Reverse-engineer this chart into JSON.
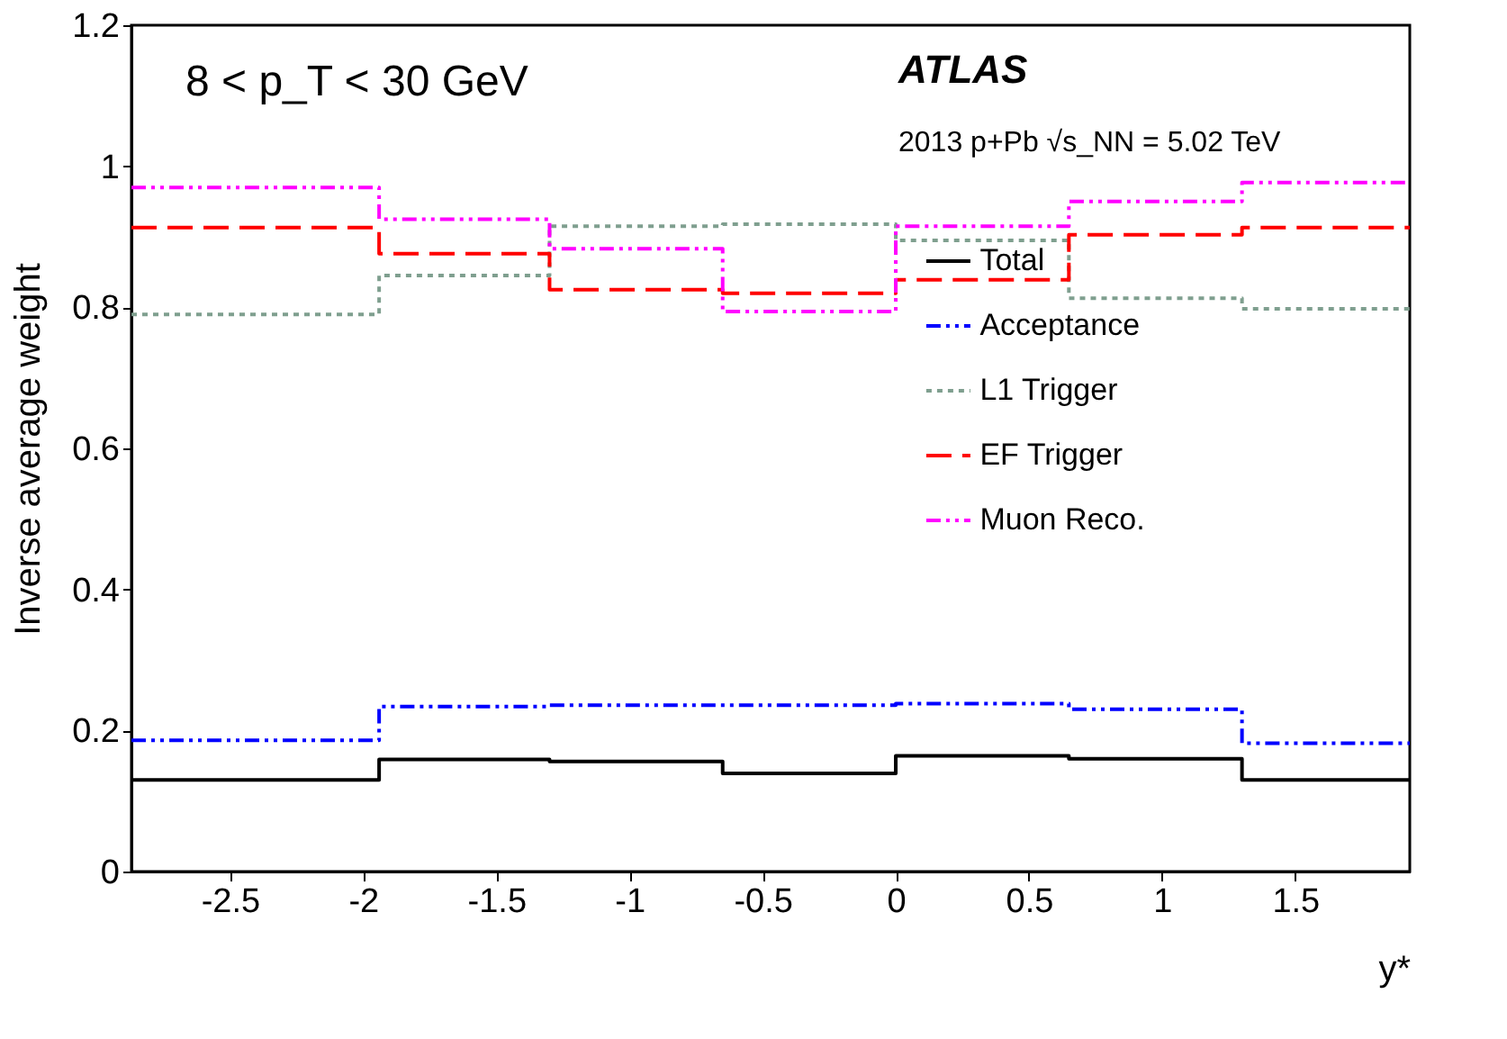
{
  "chart_data": {
    "type": "step",
    "xlabel": "y*",
    "ylabel": "Inverse average weight",
    "x": [
      -2.87,
      -1.94,
      -1.3,
      -0.65,
      0,
      0.65,
      1.3,
      1.93
    ],
    "xlim": [
      -2.87,
      1.93
    ],
    "xticks": [
      -2.5,
      -2,
      -1.5,
      -1,
      -0.5,
      0,
      0.5,
      1,
      1.5
    ],
    "ylim": [
      0,
      1.2
    ],
    "yticks": [
      0,
      0.2,
      0.4,
      0.6,
      0.8,
      1,
      1.2
    ],
    "series": [
      {
        "name": "Total",
        "color": "#000000",
        "line_style": "solid",
        "values": [
          0.13,
          0.159,
          0.156,
          0.139,
          0.164,
          0.16,
          0.13,
          0.13
        ]
      },
      {
        "name": "Acceptance",
        "color": "#0000ff",
        "line_style": "dashdot",
        "values": [
          0.186,
          0.234,
          0.236,
          0.236,
          0.238,
          0.23,
          0.182,
          0.182
        ]
      },
      {
        "name": "L1 Trigger",
        "color": "#7f9f8f",
        "line_style": "dotted",
        "values": [
          0.79,
          0.845,
          0.915,
          0.918,
          0.895,
          0.813,
          0.798,
          0.798
        ]
      },
      {
        "name": "EF Trigger",
        "color": "#ff0000",
        "line_style": "dashed",
        "values": [
          0.913,
          0.876,
          0.825,
          0.82,
          0.839,
          0.903,
          0.913,
          0.913
        ]
      },
      {
        "name": "Muon Reco.",
        "color": "#ff00ff",
        "line_style": "dashdot",
        "values": [
          0.97,
          0.925,
          0.883,
          0.794,
          0.915,
          0.95,
          0.977,
          0.977
        ]
      }
    ],
    "legend": "right",
    "grid": false,
    "marker": "none",
    "annotations": [
      "8 < p_T < 30 GeV",
      "ATLAS",
      "2013 p+Pb √s_NN = 5.02 TeV"
    ]
  }
}
